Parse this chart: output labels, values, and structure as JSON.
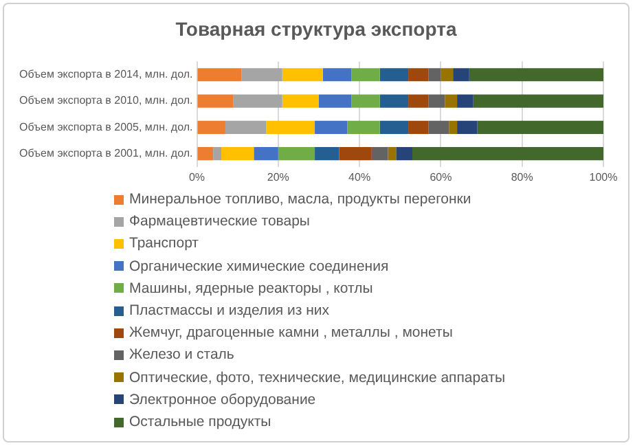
{
  "chart_data": {
    "type": "bar",
    "orientation": "horizontal",
    "stacked": true,
    "title": "Товарная структура экспорта",
    "categories": [
      "Объем экспорта в 2014, млн. дол.",
      "Объем экспорта в 2010, млн. дол.",
      "Объем экспорта в 2005, млн. дол.",
      "Объем экспорта в 2001, млн. дол."
    ],
    "series": [
      {
        "name": "Минеральное топливо, масла, продукты перегонки",
        "color": "#ed7d31",
        "values": [
          11,
          9,
          7,
          4
        ]
      },
      {
        "name": "Фармацевтические товары",
        "color": "#a5a5a5",
        "values": [
          10,
          12,
          10,
          2
        ]
      },
      {
        "name": "Транспорт",
        "color": "#ffc000",
        "values": [
          10,
          9,
          12,
          8
        ]
      },
      {
        "name": "Органические химические соединения",
        "color": "#4472c4",
        "values": [
          7,
          8,
          8,
          6
        ]
      },
      {
        "name": "Машины, ядерные реакторы , котлы",
        "color": "#70ad47",
        "values": [
          7,
          7,
          8,
          9
        ]
      },
      {
        "name": "Пластмассы и изделия из них",
        "color": "#255e91",
        "values": [
          7,
          7,
          7,
          6
        ]
      },
      {
        "name": "Жемчуг, драгоценные камни , металлы , монеты",
        "color": "#9e480e",
        "values": [
          5,
          5,
          5,
          8
        ]
      },
      {
        "name": "Железо и сталь",
        "color": "#636363",
        "values": [
          3,
          4,
          5,
          4
        ]
      },
      {
        "name": "Оптические, фото, технические, медицинские аппараты",
        "color": "#997300",
        "values": [
          3,
          3,
          2,
          2
        ]
      },
      {
        "name": "Электронное оборудование",
        "color": "#264478",
        "values": [
          4,
          4,
          5,
          4
        ]
      },
      {
        "name": "Остальные продукты",
        "color": "#43682b",
        "values": [
          33,
          32,
          31,
          47
        ]
      }
    ],
    "xlim": [
      0,
      100
    ],
    "xticks": [
      {
        "value": 0,
        "label": "0%"
      },
      {
        "value": 20,
        "label": "20%"
      },
      {
        "value": 40,
        "label": "40%"
      },
      {
        "value": 60,
        "label": "60%"
      },
      {
        "value": 80,
        "label": "80%"
      },
      {
        "value": 100,
        "label": "100%"
      }
    ],
    "grid": "x",
    "legend": "bottom"
  }
}
